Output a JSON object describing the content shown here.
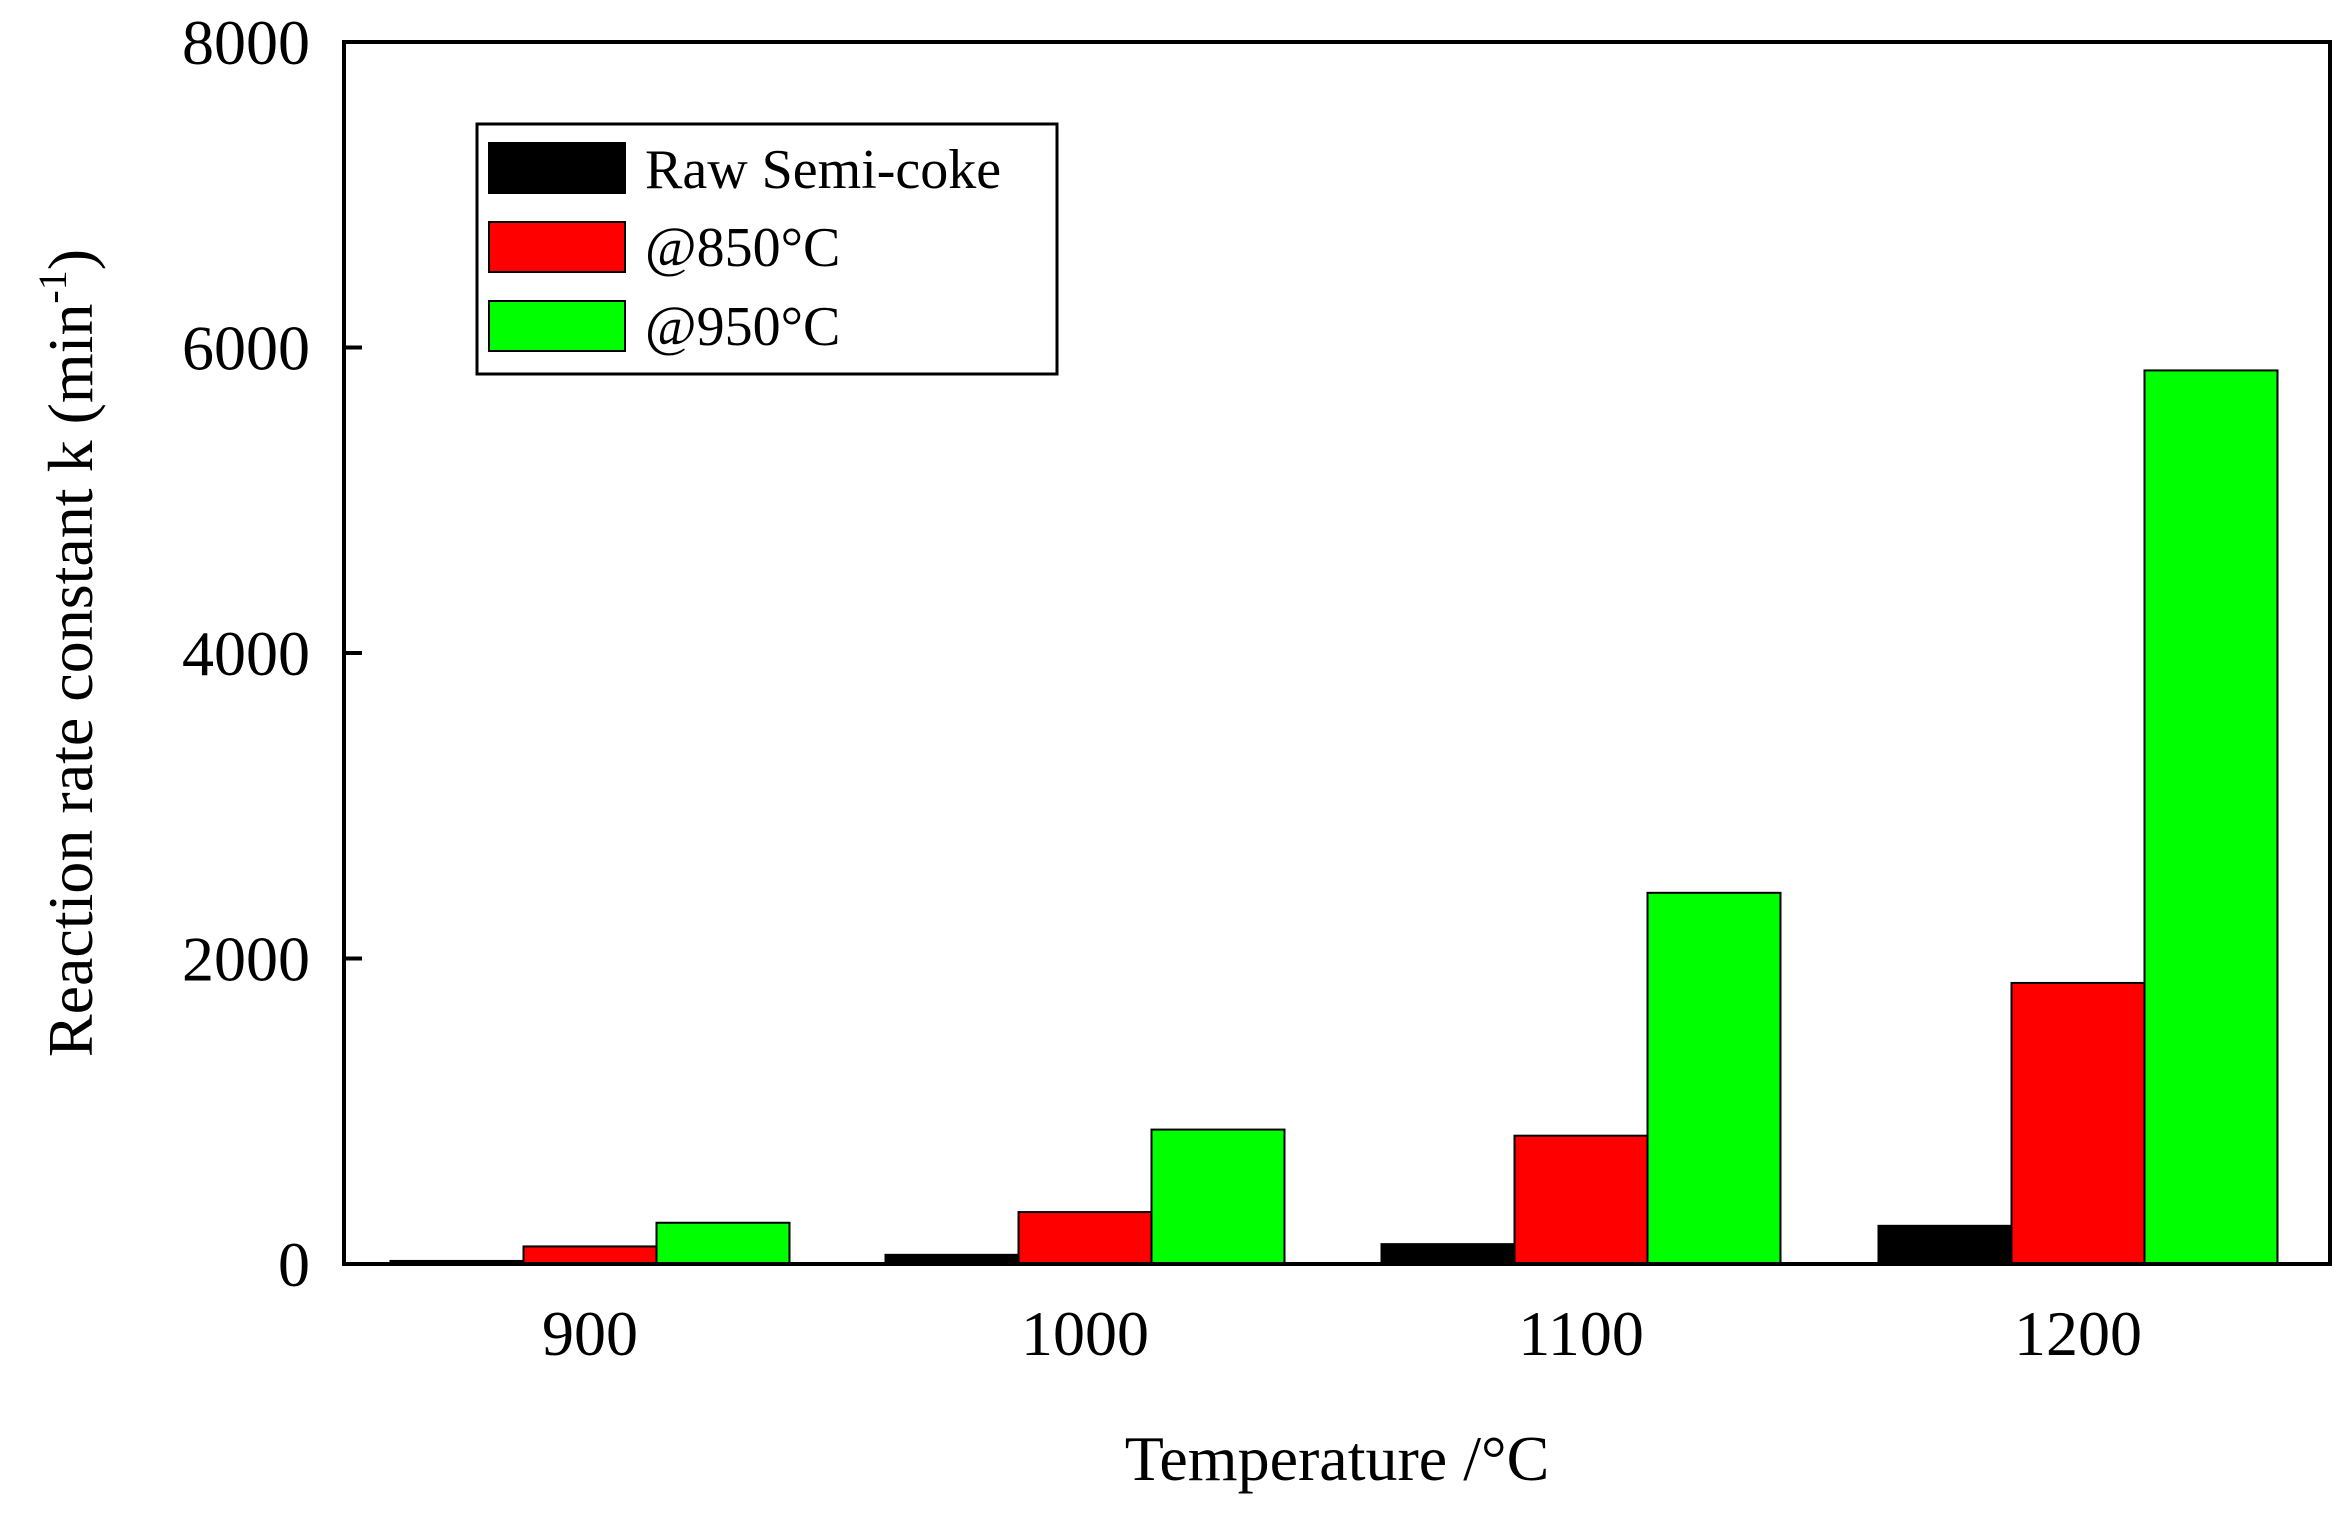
{
  "chart_data": {
    "type": "bar",
    "title": "",
    "xlabel": "Temperature /°C",
    "ylabel": "Reaction rate constant k (min",
    "ylabel_sup": "-1",
    "ylabel_close": ")",
    "categories": [
      "900",
      "1000",
      "1100",
      "1200"
    ],
    "series": [
      {
        "name": "Raw Semi-coke",
        "color": "#000000",
        "values": [
          20,
          60,
          130,
          250
        ]
      },
      {
        "name": "@850°C",
        "color": "#ff0000",
        "values": [
          115,
          340,
          840,
          1840
        ]
      },
      {
        "name": "@950°C",
        "color": "#00ff00",
        "values": [
          270,
          880,
          2430,
          5850
        ]
      }
    ],
    "ylim": [
      0,
      8000
    ],
    "yticks": [
      0,
      2000,
      4000,
      6000,
      8000
    ],
    "ytick_labels": [
      "0",
      "2000",
      "4000",
      "6000",
      "8000"
    ],
    "legend_position": "top-left",
    "grid": false
  }
}
